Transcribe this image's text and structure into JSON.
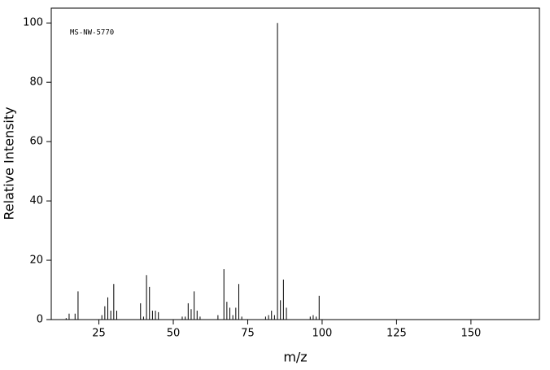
{
  "chart_data": {
    "type": "stem",
    "annotation": "MS-NW-5770",
    "x_label": "m/z",
    "y_label": "Relative Intensity",
    "xlim": [
      9,
      173
    ],
    "ylim": [
      0,
      105
    ],
    "xticks": [
      25,
      50,
      75,
      100,
      125,
      150
    ],
    "yticks": [
      0,
      20,
      40,
      60,
      80,
      100
    ],
    "color": "#000000",
    "x": [
      14,
      15,
      17,
      18,
      26,
      27,
      28,
      29,
      30,
      31,
      39,
      40,
      41,
      42,
      43,
      44,
      45,
      53,
      54,
      55,
      56,
      57,
      58,
      59,
      65,
      67,
      68,
      69,
      70,
      71,
      72,
      73,
      81,
      82,
      83,
      84,
      85,
      86,
      87,
      88,
      96,
      97,
      98,
      99
    ],
    "values": [
      0.5,
      2,
      2,
      9.5,
      1.5,
      4.5,
      7.5,
      3,
      12,
      3,
      5.5,
      1,
      15,
      11,
      3,
      3,
      2.5,
      1,
      1,
      5.5,
      3.5,
      9.5,
      3,
      1,
      1.5,
      17,
      6,
      4,
      1.5,
      4,
      12,
      1,
      1,
      1.5,
      3,
      1.5,
      100,
      6.5,
      13.5,
      4,
      1,
      1.5,
      1,
      8
    ]
  }
}
